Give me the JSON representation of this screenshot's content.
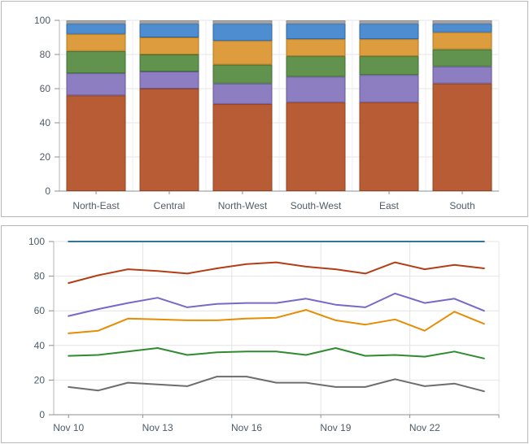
{
  "chart_data": [
    {
      "type": "bar",
      "stacked": true,
      "title": "",
      "categories": [
        "North-East",
        "Central",
        "North-West",
        "South-West",
        "East",
        "South"
      ],
      "series": [
        {
          "name": "segment-rust",
          "color": "#b85c36",
          "stroke": "#96431e",
          "values": [
            56,
            60,
            51,
            52,
            52,
            63
          ]
        },
        {
          "name": "segment-purple",
          "color": "#8d7ec2",
          "stroke": "#675699",
          "values": [
            13,
            10,
            12,
            15,
            16,
            10
          ]
        },
        {
          "name": "segment-green",
          "color": "#61934f",
          "stroke": "#3e7233",
          "values": [
            13,
            10,
            11,
            12,
            11,
            10
          ]
        },
        {
          "name": "segment-orange",
          "color": "#dd9c3d",
          "stroke": "#b5791b",
          "values": [
            10,
            10,
            14,
            10,
            10,
            10
          ]
        },
        {
          "name": "segment-blue",
          "color": "#4e8ed0",
          "stroke": "#2d66a5",
          "values": [
            6,
            8,
            10,
            9,
            9,
            5
          ]
        },
        {
          "name": "segment-gray",
          "color": "#a6a6a6",
          "stroke": "#8f8f8f",
          "values": [
            2,
            2,
            2,
            2,
            2,
            2
          ]
        }
      ],
      "y_ticks": [
        0,
        20,
        40,
        60,
        80,
        100
      ],
      "ylim": [
        0,
        100
      ],
      "grid": true,
      "legend": "none"
    },
    {
      "type": "line",
      "title": "",
      "x_tick_labels": [
        "Nov 10",
        "Nov 13",
        "Nov 16",
        "Nov 19",
        "Nov 22"
      ],
      "x_points": 15,
      "x_label_every": 3,
      "series": [
        {
          "name": "line-blue",
          "color": "#31759e",
          "values": [
            100,
            100,
            100,
            100,
            100,
            100,
            100,
            100,
            100,
            100,
            100,
            100,
            100,
            100,
            100
          ]
        },
        {
          "name": "line-red",
          "color": "#b43e14",
          "values": [
            76,
            80.5,
            84,
            83,
            81.5,
            84.5,
            87,
            88,
            85.5,
            84,
            81.5,
            88,
            84,
            86.5,
            84.5
          ]
        },
        {
          "name": "line-purple",
          "color": "#7769c9",
          "values": [
            57,
            61,
            64.5,
            67.5,
            62,
            64,
            64.5,
            64.5,
            67,
            63.5,
            62,
            70,
            64.5,
            67,
            60
          ]
        },
        {
          "name": "line-orange",
          "color": "#e78c04",
          "values": [
            47,
            48.5,
            55.5,
            55,
            54.5,
            54.5,
            55.5,
            56,
            60.5,
            54.5,
            52,
            55,
            48.5,
            59.5,
            52.5
          ]
        },
        {
          "name": "line-green",
          "color": "#2f8b2f",
          "values": [
            34,
            34.5,
            36.5,
            38.5,
            34.5,
            36,
            36.5,
            36.5,
            34.5,
            38.5,
            34,
            34.5,
            33.5,
            36.5,
            32.5
          ]
        },
        {
          "name": "line-gray",
          "color": "#6d6d6d",
          "values": [
            16,
            14,
            18.5,
            17.5,
            16.5,
            22,
            22,
            18.5,
            18.5,
            16,
            16,
            20.5,
            16.5,
            18,
            13.5
          ]
        }
      ],
      "y_ticks": [
        0,
        20,
        40,
        60,
        80,
        100
      ],
      "ylim": [
        0,
        100
      ],
      "grid": true,
      "legend": "none"
    }
  ],
  "colors": {
    "grid_line": "#e4e4e4",
    "axis_line": "#8f8f8f",
    "side_axis_line": "#b5b5b5",
    "tick": "#8f8f8f",
    "text": "#4d5c68",
    "panel_border": "#b9b9b9"
  }
}
